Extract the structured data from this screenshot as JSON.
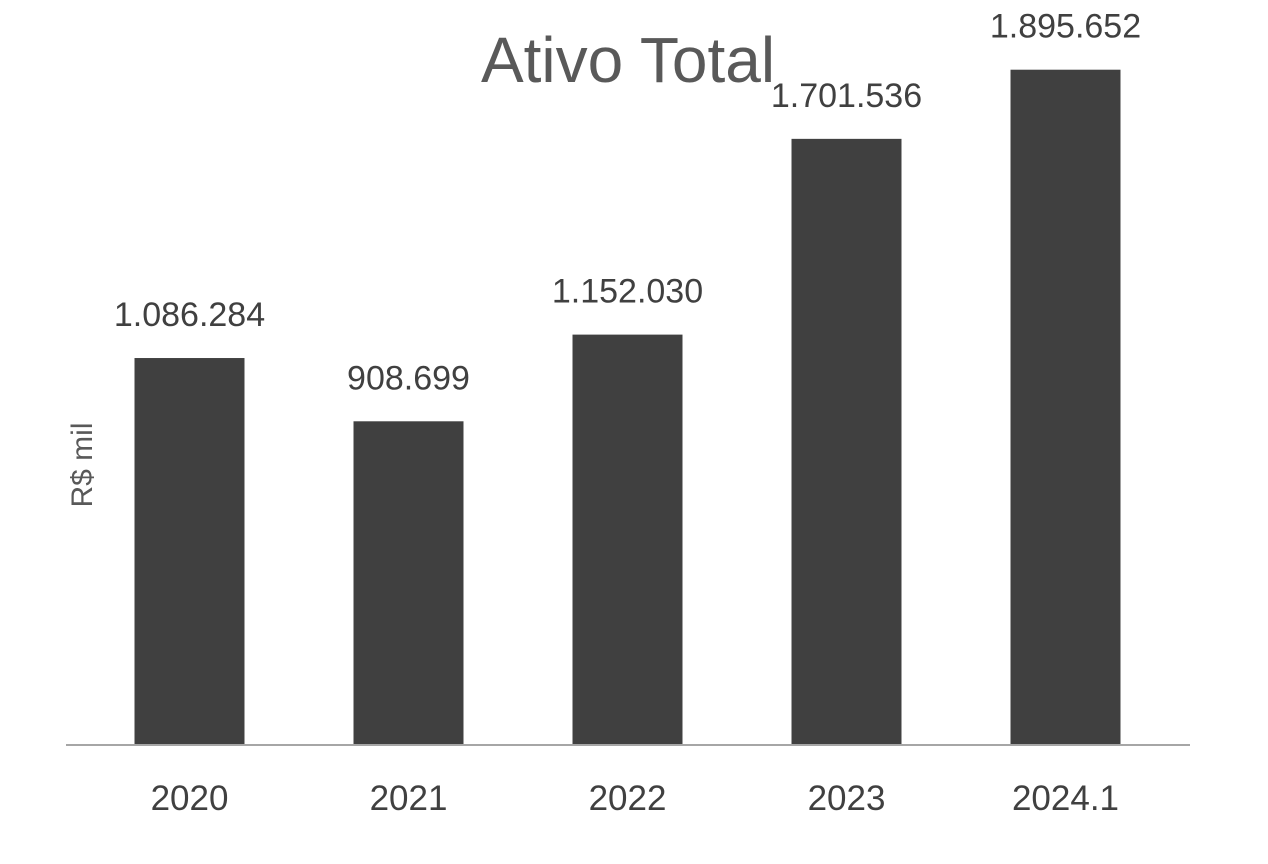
{
  "chart_data": {
    "type": "bar",
    "title": "Ativo Total",
    "xlabel": "",
    "ylabel": "R$ mil",
    "categories": [
      "2020",
      "2021",
      "2022",
      "2023",
      "2024.1"
    ],
    "values": [
      1086284,
      908699,
      1152030,
      1701536,
      1895652
    ],
    "value_labels": [
      "1.086.284",
      "908.699",
      "1.152.030",
      "1.701.536",
      "1.895.652"
    ],
    "ylim": [
      0,
      1965000
    ],
    "grid": false,
    "legend": "none",
    "bar_color": "#404040",
    "axis_color": "#a6a6a6"
  }
}
